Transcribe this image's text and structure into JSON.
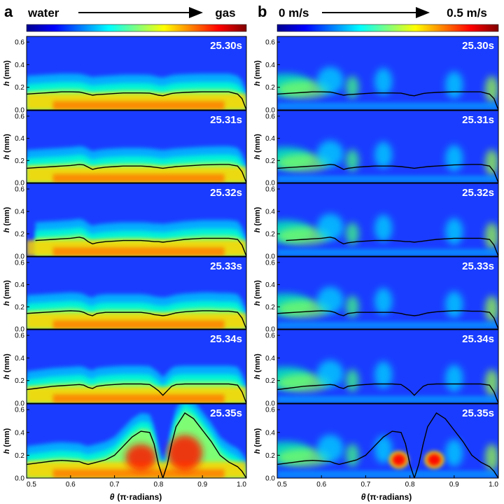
{
  "figure": {
    "panel_a_label": "a",
    "panel_b_label": "b",
    "colorbar_a": {
      "left": "water",
      "right": "gas"
    },
    "colorbar_b": {
      "left": "0 m/s",
      "right": "0.5 m/s"
    }
  },
  "chart_data": {
    "type": "heatmap",
    "ylabel_italic": "h",
    "ylabel_unit": "(mm)",
    "xlabel_italic": "θ",
    "xlabel_unit": "(π·radians)",
    "xlim": [
      0.5,
      1.0
    ],
    "ylim": [
      0.0,
      0.65
    ],
    "x_ticks": [
      "0.5",
      "0.6",
      "0.7",
      "0.8",
      "0.9",
      "1.0"
    ],
    "y_ticks": [
      "0.0",
      "0.2",
      "0.4",
      "0.6"
    ],
    "panel_a": {
      "quantity": "volume fraction (water → gas)"
    },
    "panel_b": {
      "quantity": "velocity magnitude",
      "range_ms": [
        0,
        0.5
      ]
    },
    "times": [
      "25.30s",
      "25.31s",
      "25.32s",
      "25.33s",
      "25.34s",
      "25.35s"
    ],
    "interface_x": [
      0.5,
      0.52,
      0.54,
      0.56,
      0.58,
      0.6,
      0.62,
      0.63,
      0.64,
      0.65,
      0.66,
      0.68,
      0.7,
      0.72,
      0.74,
      0.76,
      0.78,
      0.79,
      0.8,
      0.81,
      0.82,
      0.83,
      0.84,
      0.86,
      0.88,
      0.9,
      0.92,
      0.94,
      0.96,
      0.98,
      0.99,
      1.0
    ],
    "interface_h": [
      [
        0.14,
        0.145,
        0.15,
        0.155,
        0.16,
        0.16,
        0.158,
        0.15,
        0.14,
        0.13,
        0.135,
        0.14,
        0.145,
        0.15,
        0.15,
        0.15,
        0.148,
        0.14,
        0.13,
        0.125,
        0.135,
        0.145,
        0.15,
        0.155,
        0.158,
        0.16,
        0.16,
        0.16,
        0.16,
        0.14,
        0.1,
        0.0
      ],
      [
        0.13,
        0.135,
        0.14,
        0.145,
        0.15,
        0.155,
        0.165,
        0.16,
        0.14,
        0.12,
        0.13,
        0.14,
        0.145,
        0.15,
        0.15,
        0.15,
        0.145,
        0.14,
        0.135,
        0.13,
        0.135,
        0.14,
        0.145,
        0.15,
        0.155,
        0.16,
        0.162,
        0.165,
        0.165,
        0.15,
        0.1,
        0.0
      ],
      [
        null,
        0.14,
        0.145,
        0.15,
        0.155,
        0.16,
        0.17,
        0.16,
        0.13,
        0.11,
        0.12,
        0.13,
        0.135,
        0.14,
        0.14,
        0.14,
        0.135,
        0.13,
        0.13,
        0.125,
        0.13,
        0.135,
        0.14,
        0.15,
        0.155,
        0.16,
        0.16,
        0.16,
        0.16,
        0.15,
        0.1,
        0.0
      ],
      [
        0.14,
        0.145,
        0.15,
        0.155,
        0.16,
        0.165,
        0.16,
        0.15,
        0.13,
        0.12,
        0.14,
        0.15,
        0.15,
        0.15,
        0.15,
        0.15,
        0.14,
        0.13,
        0.125,
        0.12,
        0.125,
        0.135,
        0.145,
        0.155,
        0.16,
        0.165,
        0.165,
        0.16,
        0.16,
        0.15,
        0.1,
        0.0
      ],
      [
        0.12,
        0.13,
        0.14,
        0.15,
        0.155,
        0.16,
        0.165,
        0.16,
        0.14,
        0.13,
        0.15,
        0.16,
        0.165,
        0.17,
        0.17,
        0.17,
        0.165,
        0.14,
        0.11,
        0.07,
        0.11,
        0.15,
        0.165,
        0.17,
        0.17,
        0.17,
        0.17,
        0.17,
        0.17,
        0.16,
        0.1,
        0.0
      ],
      [
        0.12,
        0.13,
        0.14,
        0.15,
        0.155,
        0.15,
        0.145,
        0.13,
        0.12,
        0.13,
        0.14,
        0.16,
        0.2,
        0.28,
        0.36,
        0.41,
        0.4,
        0.3,
        0.12,
        0.0,
        0.12,
        0.3,
        0.45,
        0.57,
        0.52,
        0.42,
        0.32,
        0.2,
        0.14,
        0.1,
        0.06,
        0.0
      ]
    ],
    "hotspots_b_25_35": [
      {
        "x": 0.775,
        "h": 0.16,
        "value": "≈0.5 m/s"
      },
      {
        "x": 0.855,
        "h": 0.16,
        "value": "≈0.5 m/s"
      }
    ]
  }
}
